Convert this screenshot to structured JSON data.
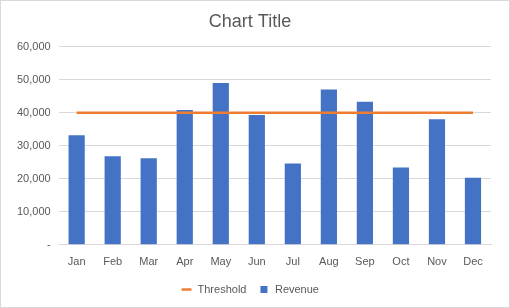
{
  "chart_data": {
    "type": "bar",
    "title": "Chart Title",
    "categories": [
      "Jan",
      "Feb",
      "Mar",
      "Apr",
      "May",
      "Jun",
      "Jul",
      "Aug",
      "Sep",
      "Oct",
      "Nov",
      "Dec"
    ],
    "series": [
      {
        "name": "Revenue",
        "type": "bar",
        "color": "#4472c4",
        "values": [
          33200,
          26800,
          26200,
          40800,
          49000,
          39300,
          24600,
          47000,
          43300,
          23400,
          38000,
          20300
        ]
      },
      {
        "name": "Threshold",
        "type": "line",
        "color": "#ed7d31",
        "marker": "none",
        "line_style": "solid",
        "values": [
          40000,
          40000,
          40000,
          40000,
          40000,
          40000,
          40000,
          40000,
          40000,
          40000,
          40000,
          40000
        ]
      }
    ],
    "ylim": [
      0,
      60000
    ],
    "yticks": [
      {
        "value": 0,
        "label": "-"
      },
      {
        "value": 10000,
        "label": "10,000"
      },
      {
        "value": 20000,
        "label": "20,000"
      },
      {
        "value": 30000,
        "label": "30,000"
      },
      {
        "value": 40000,
        "label": "40,000"
      },
      {
        "value": 50000,
        "label": "50,000"
      },
      {
        "value": 60000,
        "label": "60,000"
      }
    ],
    "grid": true,
    "legend": "bottom"
  }
}
